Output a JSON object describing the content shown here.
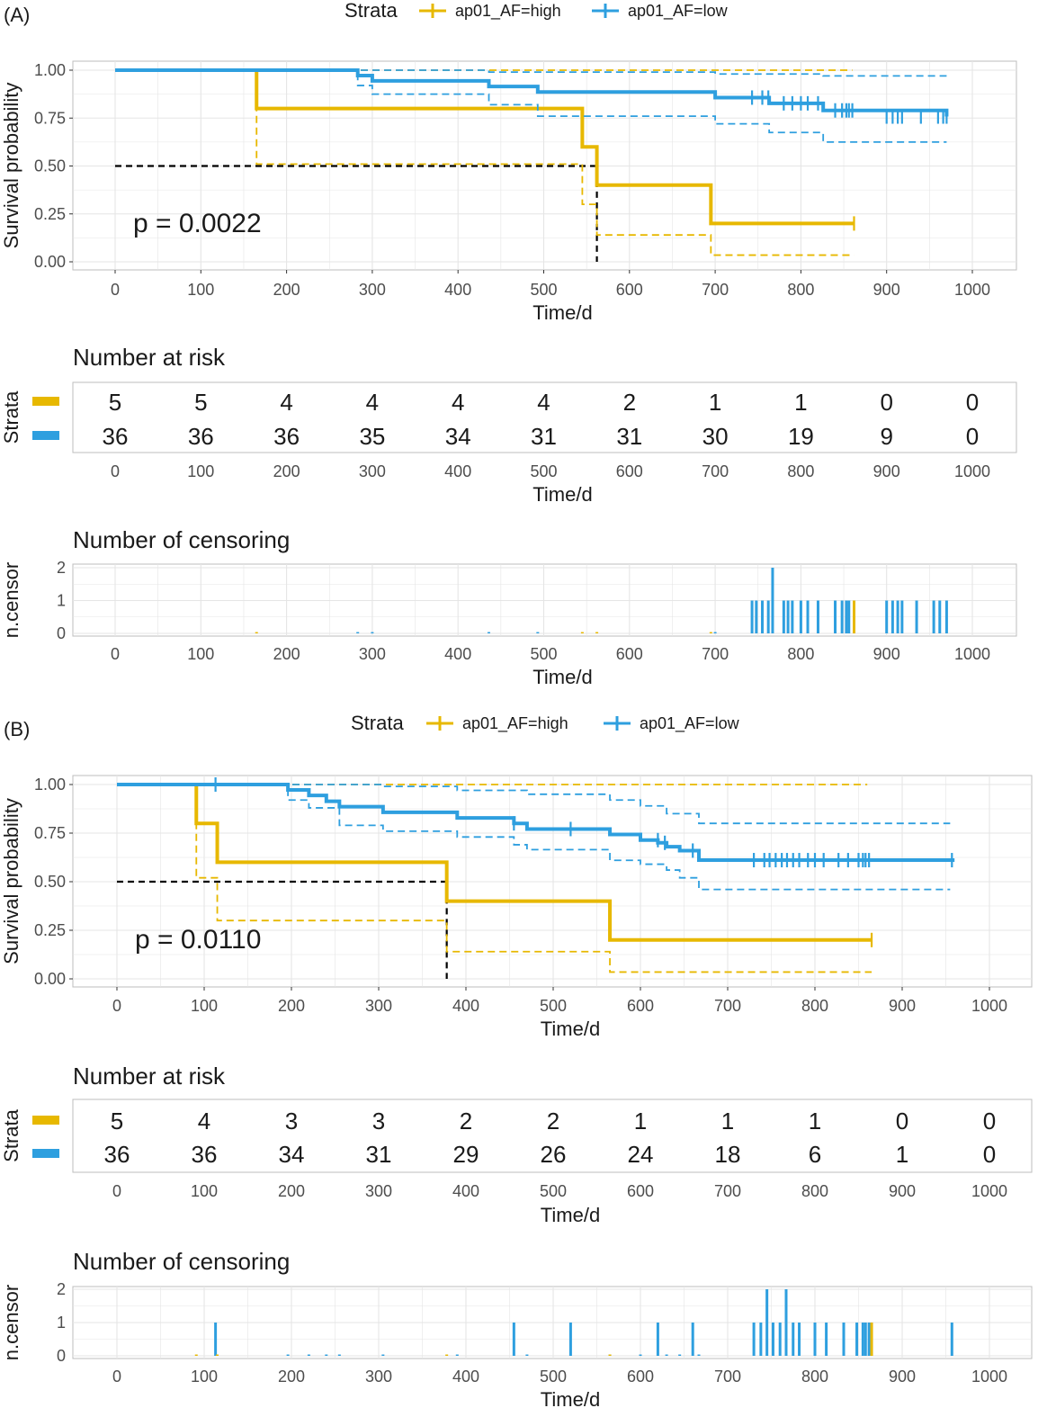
{
  "colors": {
    "high": "#E7B800",
    "low": "#2E9FDF",
    "median": "#000000",
    "grid": "#e5e5e5",
    "border": "#bdbdbd"
  },
  "chart_data": [
    {
      "type": "line",
      "panel_label": "(A)",
      "legend": {
        "title": "Strata",
        "items": [
          "ap01_AF=high",
          "ap01_AF=low"
        ],
        "placement": "top"
      },
      "xlabel": "Time/d",
      "ylabel": "Survival probability",
      "xlim": [
        0,
        1000
      ],
      "ylim": [
        0,
        1
      ],
      "x_ticks": [
        "0",
        "100",
        "200",
        "300",
        "400",
        "500",
        "600",
        "700",
        "800",
        "900",
        "1000"
      ],
      "y_ticks": [
        "0.00",
        "0.25",
        "0.50",
        "0.75",
        "1.00"
      ],
      "p_value": "p = 0.0022",
      "median_lines": [
        {
          "x": 562,
          "y": 0.5
        }
      ],
      "series": [
        {
          "name": "ap01_AF=high",
          "key": "high",
          "steps": [
            [
              0,
              1.0
            ],
            [
              165,
              0.8
            ],
            [
              545,
              0.6
            ],
            [
              562,
              0.4
            ],
            [
              695,
              0.2
            ],
            [
              862,
              0.2
            ]
          ],
          "upper": [
            [
              0,
              1.0
            ],
            [
              860,
              1.0
            ]
          ],
          "lower": [
            [
              0,
              1.0
            ],
            [
              165,
              0.51
            ],
            [
              545,
              0.3
            ],
            [
              562,
              0.14
            ],
            [
              695,
              0.035
            ],
            [
              862,
              0.035
            ]
          ],
          "censor": [
            [
              862,
              0.2
            ]
          ]
        },
        {
          "name": "ap01_AF=low",
          "key": "low",
          "steps": [
            [
              0,
              1.0
            ],
            [
              283,
              0.972
            ],
            [
              300,
              0.944
            ],
            [
              436,
              0.915
            ],
            [
              493,
              0.886
            ],
            [
              700,
              0.857
            ],
            [
              763,
              0.827
            ],
            [
              826,
              0.79
            ],
            [
              970,
              0.758
            ]
          ],
          "upper": [
            [
              0,
              1.0
            ],
            [
              283,
              1.0
            ],
            [
              436,
              0.99
            ],
            [
              700,
              0.98
            ],
            [
              826,
              0.97
            ],
            [
              970,
              0.97
            ]
          ],
          "lower": [
            [
              0,
              1.0
            ],
            [
              283,
              0.92
            ],
            [
              300,
              0.875
            ],
            [
              436,
              0.82
            ],
            [
              493,
              0.76
            ],
            [
              700,
              0.72
            ],
            [
              763,
              0.675
            ],
            [
              826,
              0.625
            ],
            [
              970,
              0.625
            ]
          ],
          "censor": [
            [
              743,
              0.857
            ],
            [
              755,
              0.857
            ],
            [
              762,
              0.857
            ],
            [
              780,
              0.827
            ],
            [
              790,
              0.827
            ],
            [
              800,
              0.827
            ],
            [
              808,
              0.827
            ],
            [
              820,
              0.827
            ],
            [
              840,
              0.79
            ],
            [
              848,
              0.79
            ],
            [
              853,
              0.79
            ],
            [
              856,
              0.79
            ],
            [
              860,
              0.79
            ],
            [
              900,
              0.758
            ],
            [
              907,
              0.758
            ],
            [
              913,
              0.758
            ],
            [
              918,
              0.758
            ],
            [
              940,
              0.758
            ],
            [
              960,
              0.758
            ],
            [
              966,
              0.758
            ],
            [
              970,
              0.758
            ]
          ]
        }
      ],
      "risk_table": {
        "title": "Number at risk",
        "ylabel": "Strata",
        "times": [
          0,
          100,
          200,
          300,
          400,
          500,
          600,
          700,
          800,
          900,
          1000
        ],
        "high": [
          "5",
          "5",
          "4",
          "4",
          "4",
          "4",
          "2",
          "1",
          "1",
          "0",
          "0"
        ],
        "low": [
          "36",
          "36",
          "36",
          "35",
          "34",
          "31",
          "31",
          "30",
          "19",
          "9",
          "0"
        ]
      },
      "censoring": {
        "title": "Number of censoring",
        "ylabel": "n.censor",
        "y_ticks": [
          "0",
          "1",
          "2"
        ],
        "high": [
          [
            165,
            0
          ],
          [
            545,
            0
          ],
          [
            562,
            0
          ],
          [
            695,
            0
          ],
          [
            862,
            1
          ]
        ],
        "low": [
          [
            283,
            0
          ],
          [
            300,
            0
          ],
          [
            436,
            0
          ],
          [
            493,
            0
          ],
          [
            700,
            0
          ],
          [
            743,
            1
          ],
          [
            748,
            1
          ],
          [
            755,
            1
          ],
          [
            762,
            1
          ],
          [
            767,
            2
          ],
          [
            780,
            1
          ],
          [
            785,
            1
          ],
          [
            790,
            1
          ],
          [
            800,
            1
          ],
          [
            808,
            1
          ],
          [
            820,
            1
          ],
          [
            840,
            1
          ],
          [
            848,
            1
          ],
          [
            853,
            1
          ],
          [
            856,
            1
          ],
          [
            900,
            1
          ],
          [
            907,
            1
          ],
          [
            913,
            1
          ],
          [
            918,
            1
          ],
          [
            935,
            1
          ],
          [
            955,
            1
          ],
          [
            962,
            1
          ],
          [
            970,
            1
          ]
        ]
      }
    },
    {
      "type": "line",
      "panel_label": "(B)",
      "legend": {
        "title": "Strata",
        "items": [
          "ap01_AF=high",
          "ap01_AF=low"
        ],
        "placement": "top"
      },
      "xlabel": "Time/d",
      "ylabel": "Survival probability",
      "xlim": [
        0,
        1000
      ],
      "ylim": [
        0,
        1
      ],
      "x_ticks": [
        "0",
        "100",
        "200",
        "300",
        "400",
        "500",
        "600",
        "700",
        "800",
        "900",
        "1000"
      ],
      "y_ticks": [
        "0.00",
        "0.25",
        "0.50",
        "0.75",
        "1.00"
      ],
      "p_value": "p = 0.0110",
      "median_lines": [
        {
          "x": 378,
          "y": 0.5
        }
      ],
      "series": [
        {
          "name": "ap01_AF=high",
          "key": "high",
          "steps": [
            [
              0,
              1.0
            ],
            [
              91,
              0.8
            ],
            [
              115,
              0.6
            ],
            [
              378,
              0.4
            ],
            [
              565,
              0.2
            ],
            [
              865,
              0.2
            ]
          ],
          "upper": [
            [
              0,
              1.0
            ],
            [
              860,
              1.0
            ]
          ],
          "lower": [
            [
              0,
              1.0
            ],
            [
              91,
              0.52
            ],
            [
              115,
              0.3
            ],
            [
              378,
              0.14
            ],
            [
              565,
              0.035
            ],
            [
              865,
              0.035
            ]
          ],
          "censor": [
            [
              865,
              0.2
            ]
          ]
        },
        {
          "name": "ap01_AF=low",
          "key": "low",
          "steps": [
            [
              0,
              1.0
            ],
            [
              196,
              0.972
            ],
            [
              220,
              0.944
            ],
            [
              240,
              0.914
            ],
            [
              255,
              0.886
            ],
            [
              305,
              0.857
            ],
            [
              390,
              0.828
            ],
            [
              455,
              0.8
            ],
            [
              470,
              0.771
            ],
            [
              565,
              0.743
            ],
            [
              600,
              0.714
            ],
            [
              620,
              0.7
            ],
            [
              630,
              0.68
            ],
            [
              645,
              0.66
            ],
            [
              667,
              0.611
            ],
            [
              960,
              0.611
            ]
          ],
          "upper": [
            [
              0,
              1.0
            ],
            [
              196,
              1.0
            ],
            [
              305,
              0.99
            ],
            [
              390,
              0.97
            ],
            [
              470,
              0.95
            ],
            [
              565,
              0.92
            ],
            [
              600,
              0.89
            ],
            [
              630,
              0.85
            ],
            [
              667,
              0.8
            ],
            [
              955,
              0.8
            ]
          ],
          "lower": [
            [
              0,
              1.0
            ],
            [
              196,
              0.92
            ],
            [
              220,
              0.88
            ],
            [
              255,
              0.79
            ],
            [
              305,
              0.76
            ],
            [
              390,
              0.73
            ],
            [
              455,
              0.69
            ],
            [
              470,
              0.665
            ],
            [
              565,
              0.61
            ],
            [
              600,
              0.59
            ],
            [
              630,
              0.56
            ],
            [
              645,
              0.52
            ],
            [
              667,
              0.46
            ],
            [
              955,
              0.46
            ]
          ],
          "censor": [
            [
              113,
              1.0
            ],
            [
              455,
              0.8
            ],
            [
              520,
              0.771
            ],
            [
              620,
              0.714
            ],
            [
              628,
              0.7
            ],
            [
              660,
              0.66
            ],
            [
              730,
              0.611
            ],
            [
              742,
              0.611
            ],
            [
              748,
              0.611
            ],
            [
              755,
              0.611
            ],
            [
              762,
              0.611
            ],
            [
              768,
              0.611
            ],
            [
              775,
              0.611
            ],
            [
              782,
              0.611
            ],
            [
              792,
              0.611
            ],
            [
              800,
              0.611
            ],
            [
              810,
              0.611
            ],
            [
              827,
              0.611
            ],
            [
              838,
              0.611
            ],
            [
              850,
              0.611
            ],
            [
              855,
              0.611
            ],
            [
              858,
              0.611
            ],
            [
              862,
              0.611
            ],
            [
              957,
              0.611
            ]
          ]
        }
      ],
      "risk_table": {
        "title": "Number at risk",
        "ylabel": "Strata",
        "times": [
          0,
          100,
          200,
          300,
          400,
          500,
          600,
          700,
          800,
          900,
          1000
        ],
        "high": [
          "5",
          "4",
          "3",
          "3",
          "2",
          "2",
          "1",
          "1",
          "1",
          "0",
          "0"
        ],
        "low": [
          "36",
          "36",
          "34",
          "31",
          "29",
          "26",
          "24",
          "18",
          "6",
          "1",
          "0"
        ]
      },
      "censoring": {
        "title": "Number of censoring",
        "ylabel": "n.censor",
        "y_ticks": [
          "0",
          "1",
          "2"
        ],
        "high": [
          [
            91,
            0
          ],
          [
            115,
            0
          ],
          [
            378,
            0
          ],
          [
            565,
            0
          ],
          [
            865,
            1
          ]
        ],
        "low": [
          [
            113,
            1
          ],
          [
            196,
            0
          ],
          [
            220,
            0
          ],
          [
            240,
            0
          ],
          [
            255,
            0
          ],
          [
            305,
            0
          ],
          [
            390,
            0
          ],
          [
            455,
            1
          ],
          [
            470,
            0
          ],
          [
            520,
            1
          ],
          [
            565,
            0
          ],
          [
            600,
            0
          ],
          [
            620,
            1
          ],
          [
            630,
            0
          ],
          [
            645,
            0
          ],
          [
            660,
            1
          ],
          [
            667,
            0
          ],
          [
            730,
            1
          ],
          [
            738,
            1
          ],
          [
            745,
            2
          ],
          [
            752,
            1
          ],
          [
            760,
            1
          ],
          [
            767,
            2
          ],
          [
            775,
            1
          ],
          [
            782,
            1
          ],
          [
            800,
            1
          ],
          [
            813,
            1
          ],
          [
            833,
            1
          ],
          [
            848,
            1
          ],
          [
            855,
            1
          ],
          [
            858,
            1
          ],
          [
            862,
            1
          ],
          [
            957,
            1
          ]
        ]
      }
    }
  ]
}
